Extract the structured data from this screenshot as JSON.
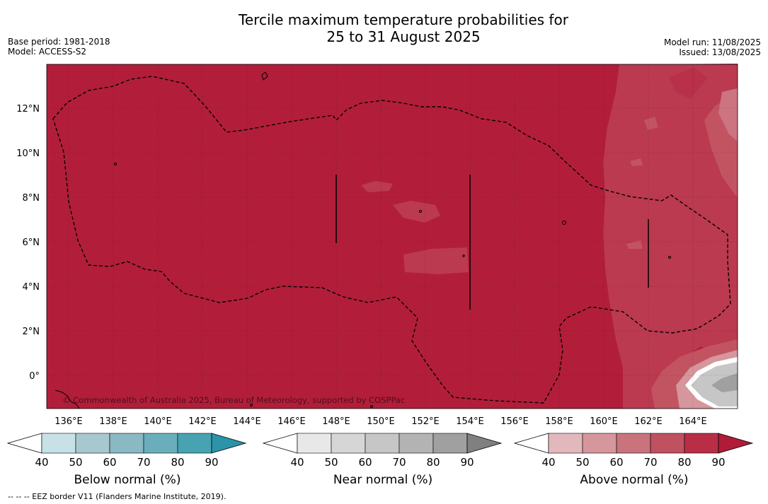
{
  "title_line1": "Tercile maximum temperature probabilities for",
  "title_line2": "25 to 31 August 2025",
  "base_period": "Base period: 1981-2018",
  "model": "Model: ACCESS-S2",
  "model_run": "Model run: 11/08/2025",
  "issued": "Issued: 13/08/2025",
  "copyright": "© Commonwealth of Australia 2025, Bureau of Meteorology, supported by COSPPac",
  "footnote": "--  --  -- EEZ border V11 (Flanders Marine Institute, 2019).",
  "lat_labels": [
    "12°N",
    "10°N",
    "8°N",
    "6°N",
    "4°N",
    "2°N",
    "0°"
  ],
  "lon_labels": [
    "136°E",
    "138°E",
    "140°E",
    "142°E",
    "144°E",
    "146°E",
    "148°E",
    "150°E",
    "152°E",
    "154°E",
    "156°E",
    "158°E",
    "160°E",
    "162°E",
    "164°E"
  ],
  "legends": [
    {
      "title": "Below normal (%)",
      "ticks": [
        "40",
        "50",
        "60",
        "70",
        "80",
        "90"
      ],
      "colors": [
        "#ffffff",
        "#c8e1e7",
        "#a8c8cf",
        "#8ab8c3",
        "#6aaebb",
        "#47a2b2",
        "#2b94a8"
      ]
    },
    {
      "title": "Near normal (%)",
      "ticks": [
        "40",
        "50",
        "60",
        "70",
        "80",
        "90"
      ],
      "colors": [
        "#ffffff",
        "#e8e8e8",
        "#d6d6d6",
        "#c6c6c6",
        "#b3b3b3",
        "#a0a0a0",
        "#808080"
      ]
    },
    {
      "title": "Above normal (%)",
      "ticks": [
        "40",
        "50",
        "60",
        "70",
        "80",
        "90"
      ],
      "colors": [
        "#ffffff",
        "#e3b8bd",
        "#d5969c",
        "#c9737d",
        "#c05160",
        "#b82e47",
        "#b01c38"
      ]
    }
  ],
  "colors": {
    "above_90": "#b21e3a",
    "above_80": "#bb3a50",
    "above_70": "#c25462",
    "above_60": "#cc7480"
  }
}
